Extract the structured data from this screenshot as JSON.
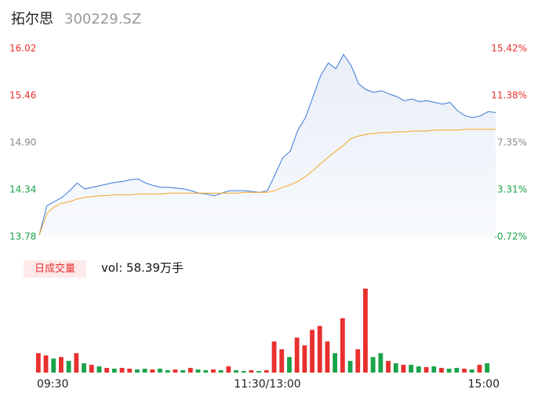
{
  "header": {
    "name": "拓尔思",
    "code": "300229.SZ"
  },
  "chart_data": [
    {
      "type": "line",
      "x": [
        0,
        4,
        8,
        12,
        16,
        20,
        24,
        28,
        32,
        36,
        40,
        44,
        48,
        52,
        56,
        60,
        64,
        68,
        72,
        76,
        80,
        84,
        88,
        92,
        96,
        100,
        104,
        108,
        112,
        116,
        120,
        124,
        128,
        132,
        136,
        140,
        144,
        148,
        152,
        156,
        160,
        164,
        168,
        172,
        176,
        180,
        184,
        188,
        192,
        196,
        200,
        204,
        208,
        212,
        216,
        220,
        224,
        228,
        232,
        236,
        240
      ],
      "series": [
        {
          "color": "#3b78d8",
          "values": [
            13.8,
            14.15,
            14.2,
            14.25,
            14.33,
            14.42,
            14.35,
            14.37,
            14.39,
            14.41,
            14.43,
            14.44,
            14.46,
            14.47,
            14.42,
            14.39,
            14.37,
            14.37,
            14.36,
            14.35,
            14.33,
            14.3,
            14.29,
            14.27,
            14.3,
            14.33,
            14.33,
            14.33,
            14.32,
            14.31,
            14.33,
            14.52,
            14.72,
            14.8,
            15.05,
            15.2,
            15.45,
            15.7,
            15.85,
            15.78,
            15.95,
            15.82,
            15.6,
            15.53,
            15.5,
            15.52,
            15.48,
            15.45,
            15.4,
            15.42,
            15.39,
            15.4,
            15.38,
            15.36,
            15.38,
            15.28,
            15.22,
            15.2,
            15.22,
            15.27,
            15.26
          ]
        },
        {
          "color": "#f5a623",
          "values": [
            13.8,
            14.06,
            14.14,
            14.18,
            14.2,
            14.23,
            14.25,
            14.26,
            14.27,
            14.27,
            14.28,
            14.28,
            14.28,
            14.29,
            14.29,
            14.29,
            14.29,
            14.3,
            14.3,
            14.3,
            14.3,
            14.3,
            14.3,
            14.3,
            14.3,
            14.3,
            14.3,
            14.31,
            14.31,
            14.31,
            14.31,
            14.33,
            14.37,
            14.4,
            14.44,
            14.5,
            14.57,
            14.65,
            14.73,
            14.8,
            14.87,
            14.95,
            14.98,
            15.0,
            15.01,
            15.02,
            15.02,
            15.03,
            15.03,
            15.04,
            15.04,
            15.04,
            15.05,
            15.05,
            15.05,
            15.05,
            15.06,
            15.06,
            15.06,
            15.06,
            15.06
          ]
        }
      ],
      "xlim": [
        0,
        240
      ],
      "xticks": [
        {
          "value": 0,
          "label": "09:30"
        },
        {
          "value": 120,
          "label": "11:30/13:00"
        },
        {
          "value": 240,
          "label": "15:00"
        }
      ],
      "ylim": [
        13.78,
        16.02
      ],
      "yticks": [
        {
          "value": 16.02,
          "label": "16.02"
        },
        {
          "value": 15.46,
          "label": "15.46"
        },
        {
          "value": 14.9,
          "label": "14.90"
        },
        {
          "value": 14.34,
          "label": "14.34"
        },
        {
          "value": 13.78,
          "label": "13.78"
        }
      ],
      "y2lim": [
        -0.72,
        15.42
      ],
      "y2ticks": [
        {
          "value": 15.42,
          "label": "15.42%"
        },
        {
          "value": 11.38,
          "label": "11.38%"
        },
        {
          "value": 7.35,
          "label": "7.35%"
        },
        {
          "value": 3.31,
          "label": "3.31%"
        },
        {
          "value": -0.72,
          "label": "-0.72%"
        }
      ],
      "grid": false
    },
    {
      "type": "bar",
      "title": "日成交量",
      "label": "vol: 58.39万手",
      "values": [
        25,
        22,
        18,
        20,
        15,
        25,
        12,
        10,
        8,
        6,
        5,
        6,
        5,
        4,
        5,
        4,
        5,
        3,
        4,
        3,
        6,
        4,
        3,
        4,
        3,
        8,
        3,
        2,
        3,
        2,
        3,
        40,
        30,
        20,
        45,
        35,
        55,
        60,
        40,
        25,
        70,
        15,
        30,
        108,
        20,
        25,
        15,
        12,
        10,
        10,
        8,
        7,
        8,
        6,
        5,
        6,
        5,
        4,
        10,
        12
      ],
      "colors": [
        "#e8302e",
        "#e8302e",
        "#1aa34a",
        "#e8302e",
        "#1aa34a",
        "#e8302e",
        "#1aa34a",
        "#e8302e",
        "#1aa34a",
        "#e8302e",
        "#1aa34a",
        "#e8302e",
        "#e8302e",
        "#1aa34a",
        "#1aa34a",
        "#e8302e",
        "#1aa34a",
        "#1aa34a",
        "#e8302e",
        "#1aa34a",
        "#e8302e",
        "#1aa34a",
        "#1aa34a",
        "#e8302e",
        "#1aa34a",
        "#e8302e",
        "#1aa34a",
        "#1aa34a",
        "#e8302e",
        "#1aa34a",
        "#e8302e",
        "#e8302e",
        "#e8302e",
        "#1aa34a",
        "#e8302e",
        "#e8302e",
        "#e8302e",
        "#e8302e",
        "#e8302e",
        "#1aa34a",
        "#e8302e",
        "#1aa34a",
        "#e8302e",
        "#e8302e",
        "#1aa34a",
        "#1aa34a",
        "#e8302e",
        "#1aa34a",
        "#e8302e",
        "#1aa34a",
        "#1aa34a",
        "#e8302e",
        "#1aa34a",
        "#e8302e",
        "#1aa34a",
        "#1aa34a",
        "#e8302e",
        "#1aa34a",
        "#e8302e",
        "#1aa34a"
      ],
      "ylim": [
        0,
        110
      ]
    }
  ]
}
